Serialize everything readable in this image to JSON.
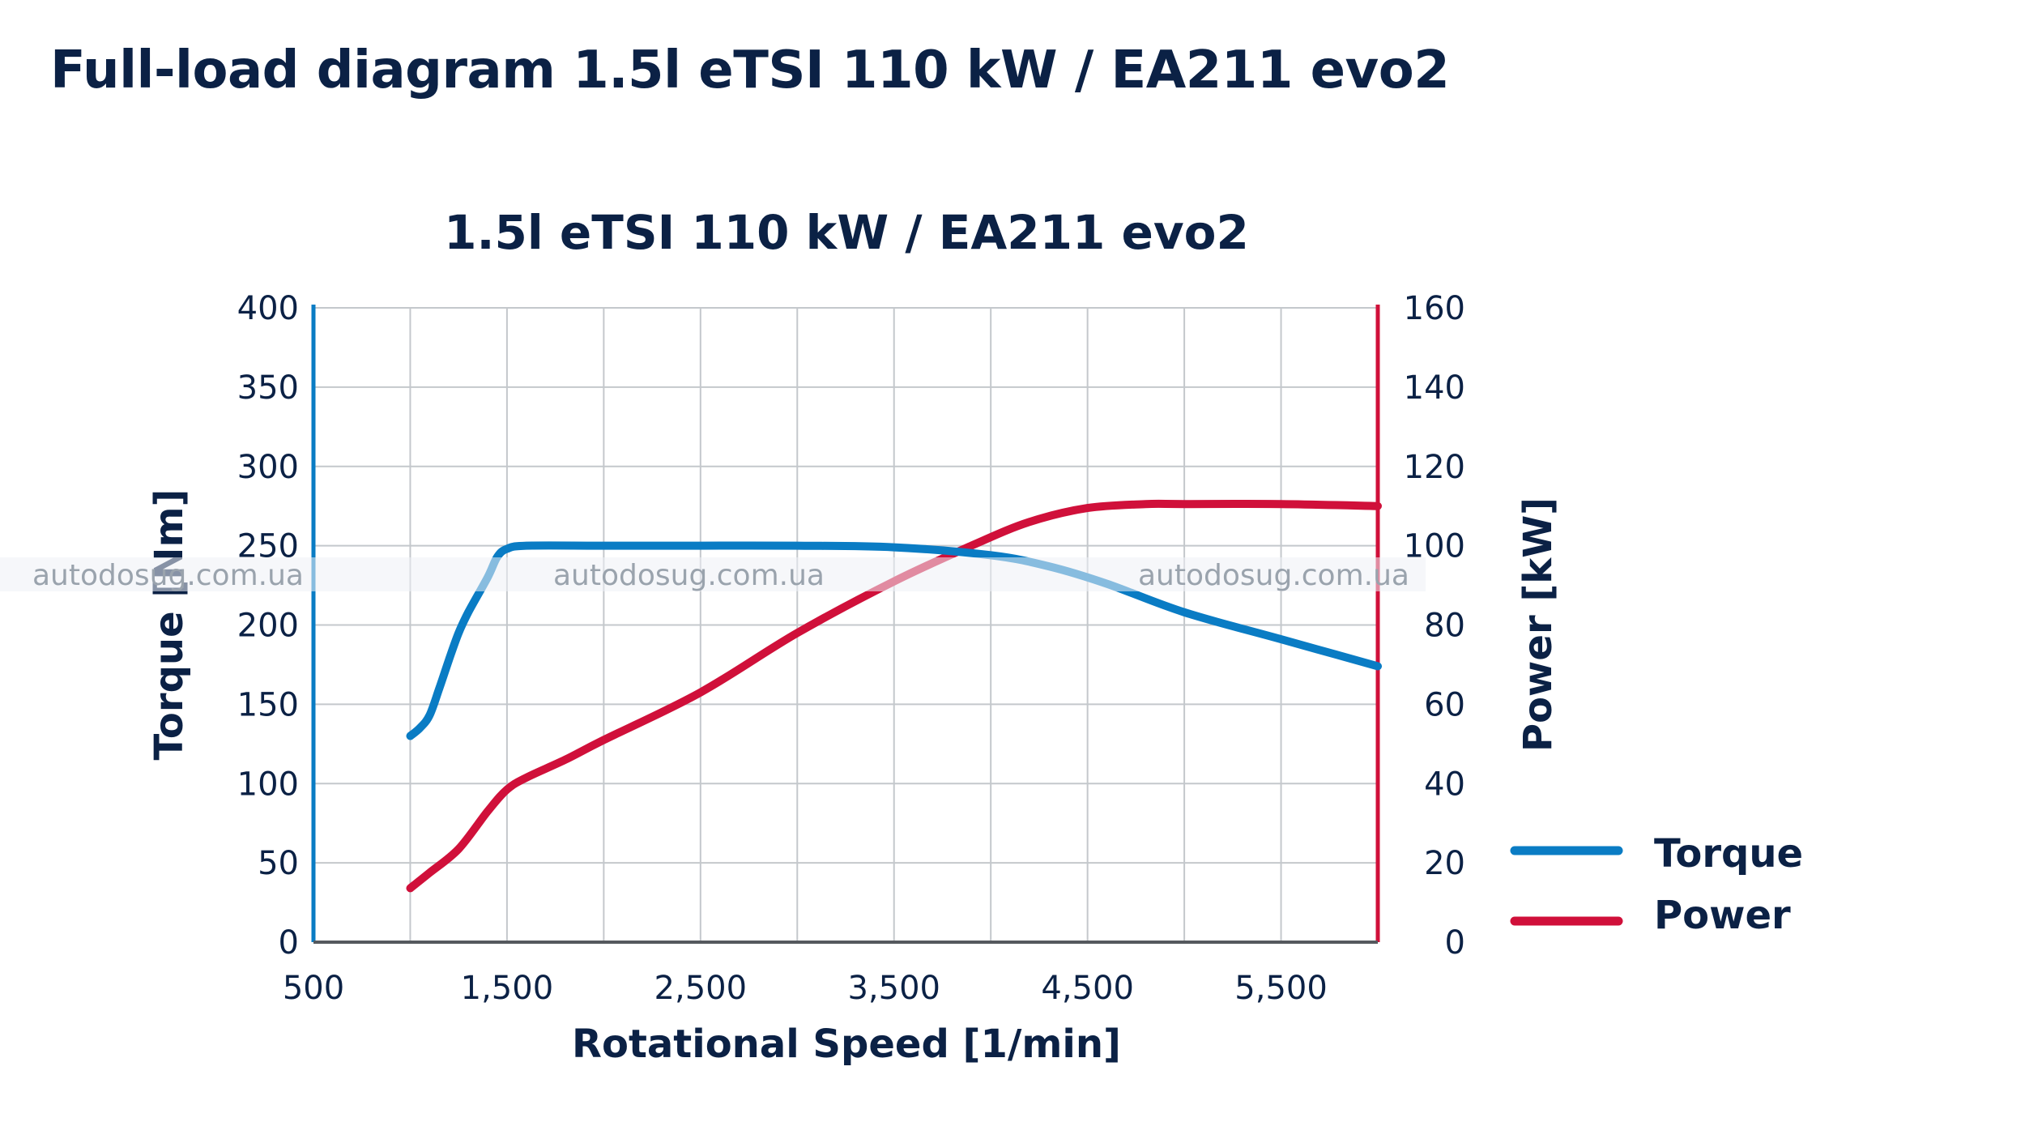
{
  "page": {
    "title": "Full-load diagram 1.5l eTSI 110 kW / EA211 evo2"
  },
  "watermark": {
    "text": "autodosug.com.ua"
  },
  "colors": {
    "torque": "#0a7cc4",
    "power": "#d0103a",
    "grid": "#c4c8cc",
    "text": "#0b2145"
  },
  "chart_data": {
    "type": "line",
    "title": "1.5l eTSI 110 kW / EA211 evo2",
    "xlabel": "Rotational Speed [1/min]",
    "ylabel_left": "Torque [Nm]",
    "ylabel_right": "Power [kW]",
    "xlim": [
      500,
      6000
    ],
    "ylim_left": [
      0,
      400
    ],
    "ylim_right": [
      0,
      160
    ],
    "x_grid_step": 500,
    "x_ticks": [
      500,
      1500,
      2500,
      3500,
      4500,
      5500
    ],
    "x_tick_labels": [
      "500",
      "1,500",
      "2,500",
      "3,500",
      "4,500",
      "5,500"
    ],
    "y_left_ticks": [
      0,
      50,
      100,
      150,
      200,
      250,
      300,
      350,
      400
    ],
    "y_left_tick_labels": [
      "0",
      "50",
      "100",
      "150",
      "200",
      "250",
      "300",
      "350",
      "400"
    ],
    "y_right_ticks": [
      0,
      20,
      40,
      60,
      80,
      100,
      120,
      140,
      160
    ],
    "y_right_tick_labels": [
      "0",
      "20",
      "40",
      "60",
      "80",
      "100",
      "120",
      "140",
      "160"
    ],
    "grid": true,
    "legend_position": "right",
    "series": [
      {
        "name": "Torque",
        "axis": "left",
        "x": [
          1000,
          1050,
          1100,
          1150,
          1200,
          1250,
          1300,
          1400,
          1450,
          1500,
          1600,
          2000,
          2500,
          3000,
          3500,
          4000,
          4300,
          4600,
          5000,
          5500,
          6000
        ],
        "y": [
          130,
          135,
          143,
          160,
          178,
          195,
          208,
          230,
          243,
          248,
          250,
          250,
          250,
          250,
          249,
          244,
          237,
          226,
          208,
          191,
          174
        ]
      },
      {
        "name": "Power",
        "axis": "right",
        "x": [
          1000,
          1100,
          1250,
          1400,
          1500,
          1600,
          1800,
          2000,
          2500,
          3000,
          3500,
          3900,
          4200,
          4500,
          4800,
          5000,
          5500,
          6000
        ],
        "y": [
          13.6,
          17.5,
          23.5,
          33,
          38.5,
          41.5,
          46,
          51,
          63,
          78,
          91,
          100,
          106,
          109.5,
          110.5,
          110.5,
          110.5,
          110
        ]
      }
    ],
    "legend": [
      "Torque",
      "Power"
    ]
  }
}
